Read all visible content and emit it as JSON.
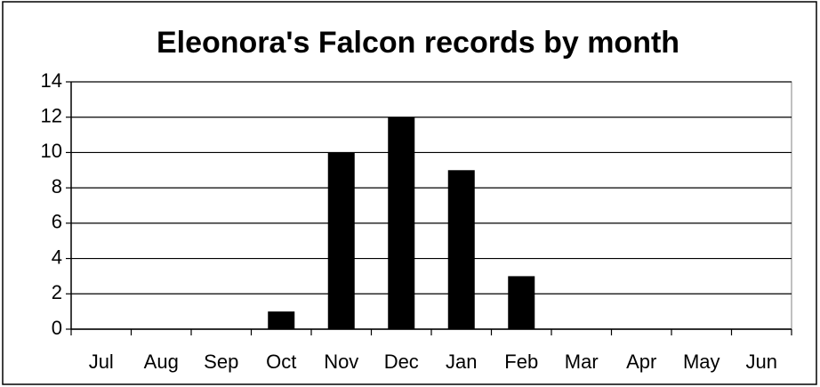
{
  "chart_data": {
    "type": "bar",
    "title": "Eleonora's Falcon records by month",
    "categories": [
      "Jul",
      "Aug",
      "Sep",
      "Oct",
      "Nov",
      "Dec",
      "Jan",
      "Feb",
      "Mar",
      "Apr",
      "May",
      "Jun"
    ],
    "values": [
      0,
      0,
      0,
      1,
      10,
      12,
      9,
      3,
      0,
      0,
      0,
      0
    ],
    "color": "#000000",
    "ylim": [
      0,
      14
    ],
    "yticks": [
      0,
      2,
      4,
      6,
      8,
      10,
      12,
      14
    ],
    "grid": true
  }
}
